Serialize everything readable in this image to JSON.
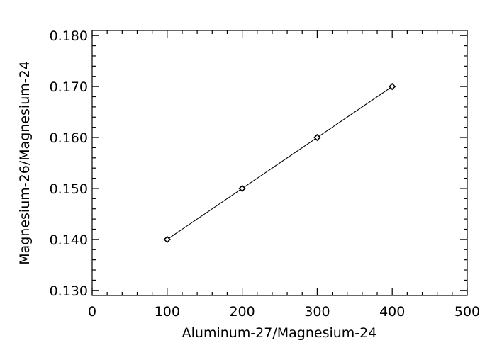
{
  "chart_data": {
    "type": "scatter",
    "title": "",
    "xlabel": "Aluminum-27/Magnesium-24",
    "ylabel": "Magnesium-26/Magnesium-24",
    "xlim": [
      0,
      500
    ],
    "ylim": [
      0.129,
      0.181
    ],
    "x_ticks": [
      0,
      100,
      200,
      300,
      400,
      500
    ],
    "x_tick_labels": [
      "0",
      "100",
      "200",
      "300",
      "400",
      "500"
    ],
    "y_ticks": [
      0.13,
      0.14,
      0.15,
      0.16,
      0.17,
      0.18
    ],
    "y_tick_labels": [
      "0.130",
      "0.140",
      "0.150",
      "0.160",
      "0.170",
      "0.180"
    ],
    "x_minor_step": 20,
    "y_minor_step": 0.002,
    "grid": false,
    "series": [
      {
        "x": [
          100,
          200,
          300,
          400
        ],
        "y": [
          0.14,
          0.15,
          0.16,
          0.17
        ],
        "marker": "diamond",
        "line": true,
        "color": "#000000"
      }
    ]
  }
}
